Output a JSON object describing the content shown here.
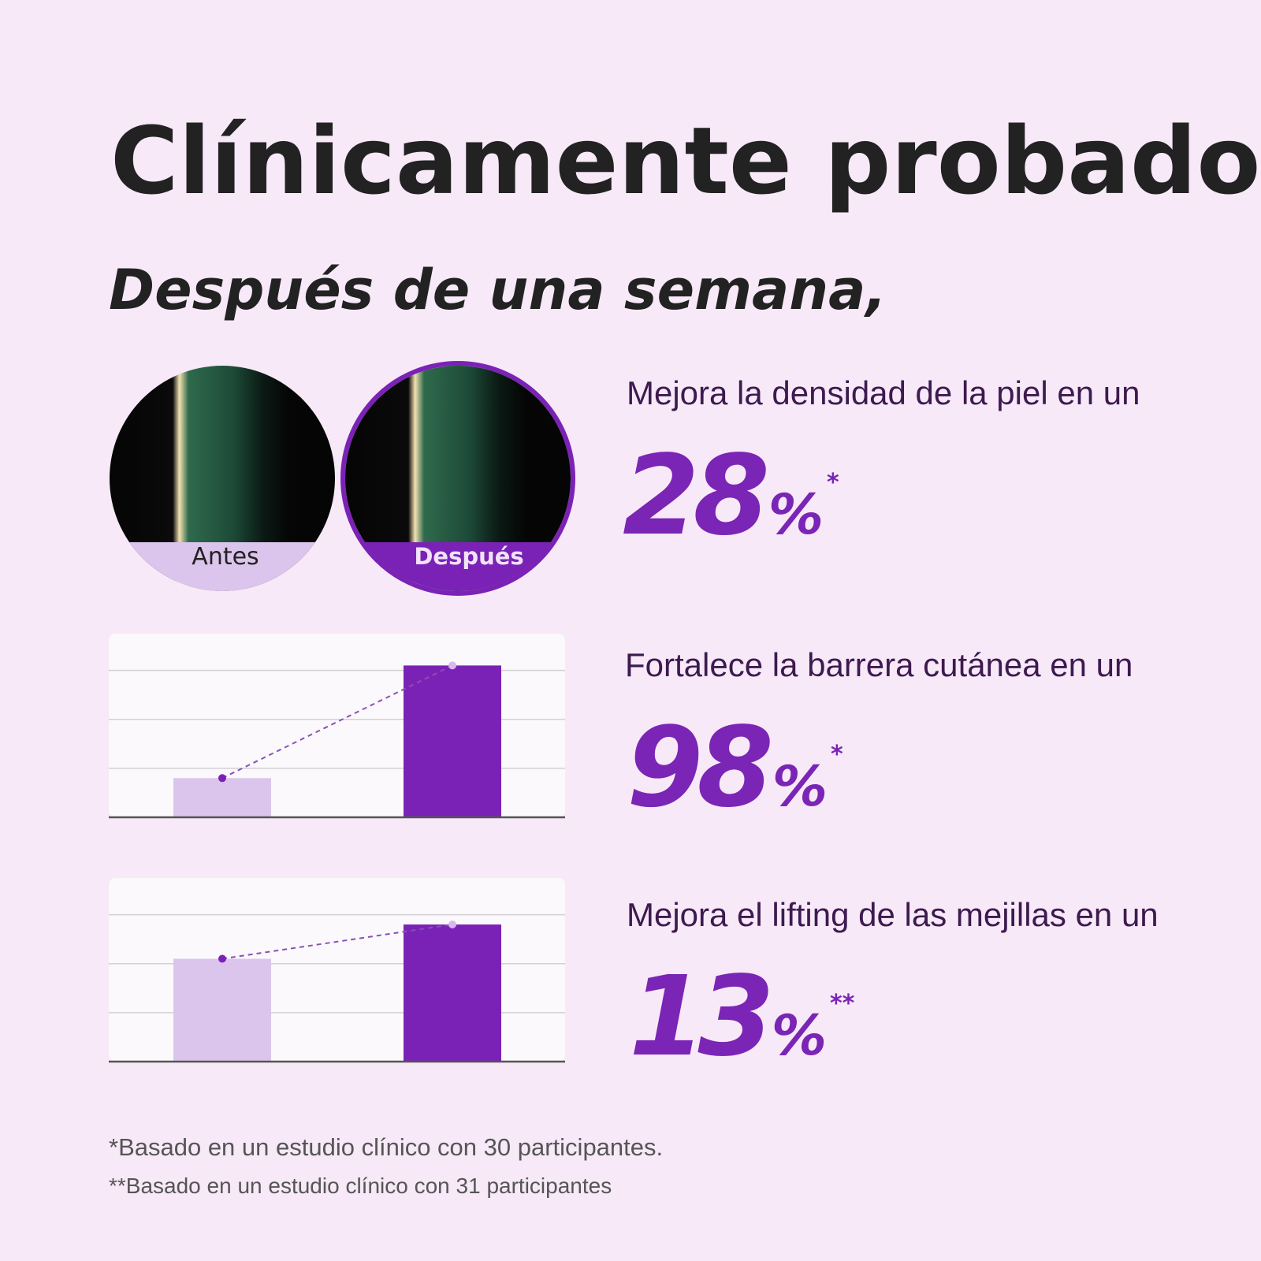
{
  "title": "Clínicamente probado",
  "subtitle": "Después de una semana,",
  "images": {
    "before": "Antes",
    "after": "Después"
  },
  "stats": [
    {
      "text": "Mejora la densidad de la piel en un",
      "value": 28,
      "unit": "%",
      "note": "*"
    },
    {
      "text": "Fortalece la barrera cutánea en un",
      "value": 98,
      "unit": "%",
      "note": "*"
    },
    {
      "text": "Mejora el lifting de las mejillas en un",
      "value": 13,
      "unit": "%",
      "note": "**"
    }
  ],
  "charts": [
    {
      "type": "bar",
      "values": [
        0.8,
        3.1
      ],
      "colors": [
        "#dcc5ec",
        "#7b22b6"
      ],
      "ylim": [
        0,
        3.75
      ],
      "yticks": [
        1,
        2,
        3
      ],
      "grid": true
    },
    {
      "type": "bar",
      "values": [
        2.1,
        2.8
      ],
      "colors": [
        "#dcc5ec",
        "#7b22b6"
      ],
      "ylim": [
        0,
        3.75
      ],
      "yticks": [
        1,
        2,
        3
      ],
      "grid": true
    }
  ],
  "footnotes": [
    "*Basado en un estudio clínico con 30 participantes.",
    "**Basado en un estudio clínico con 31 participantes"
  ]
}
